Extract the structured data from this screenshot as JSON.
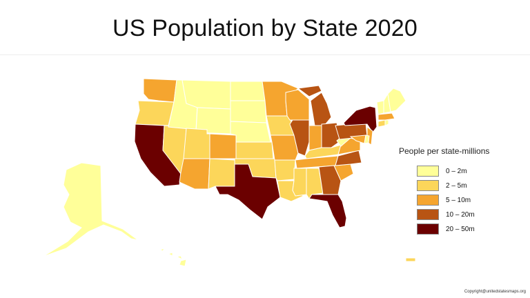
{
  "title": "US Population by State 2020",
  "legend": {
    "title": "People per state-millions",
    "items": [
      {
        "label": "0 – 2m",
        "color": "#ffff99"
      },
      {
        "label": "2 – 5m",
        "color": "#fcd65a"
      },
      {
        "label": "5 – 10m",
        "color": "#f5a52f"
      },
      {
        "label": "10 – 20m",
        "color": "#b85413"
      },
      {
        "label": "20 – 50m",
        "color": "#6b0000"
      }
    ]
  },
  "states": [
    {
      "name": "WA",
      "bin": 2
    },
    {
      "name": "OR",
      "bin": 1
    },
    {
      "name": "CA",
      "bin": 4
    },
    {
      "name": "NV",
      "bin": 1
    },
    {
      "name": "ID",
      "bin": 0
    },
    {
      "name": "MT",
      "bin": 0
    },
    {
      "name": "WY",
      "bin": 0
    },
    {
      "name": "UT",
      "bin": 1
    },
    {
      "name": "AZ",
      "bin": 2
    },
    {
      "name": "NM",
      "bin": 1
    },
    {
      "name": "CO",
      "bin": 2
    },
    {
      "name": "ND",
      "bin": 0
    },
    {
      "name": "SD",
      "bin": 0
    },
    {
      "name": "NE",
      "bin": 0
    },
    {
      "name": "KS",
      "bin": 1
    },
    {
      "name": "OK",
      "bin": 1
    },
    {
      "name": "TX",
      "bin": 4
    },
    {
      "name": "MN",
      "bin": 2
    },
    {
      "name": "IA",
      "bin": 1
    },
    {
      "name": "MO",
      "bin": 2
    },
    {
      "name": "AR",
      "bin": 1
    },
    {
      "name": "LA",
      "bin": 1
    },
    {
      "name": "WI",
      "bin": 2
    },
    {
      "name": "IL",
      "bin": 3
    },
    {
      "name": "MI",
      "bin": 3
    },
    {
      "name": "IN",
      "bin": 2
    },
    {
      "name": "OH",
      "bin": 3
    },
    {
      "name": "KY",
      "bin": 1
    },
    {
      "name": "TN",
      "bin": 2
    },
    {
      "name": "MS",
      "bin": 1
    },
    {
      "name": "AL",
      "bin": 1
    },
    {
      "name": "GA",
      "bin": 3
    },
    {
      "name": "FL",
      "bin": 4
    },
    {
      "name": "SC",
      "bin": 2
    },
    {
      "name": "NC",
      "bin": 3
    },
    {
      "name": "VA",
      "bin": 2
    },
    {
      "name": "WV",
      "bin": 0
    },
    {
      "name": "PA",
      "bin": 3
    },
    {
      "name": "NY",
      "bin": 4
    },
    {
      "name": "NJ",
      "bin": 2
    },
    {
      "name": "MD",
      "bin": 2
    },
    {
      "name": "DE",
      "bin": 0
    },
    {
      "name": "CT",
      "bin": 1
    },
    {
      "name": "RI",
      "bin": 0
    },
    {
      "name": "MA",
      "bin": 2
    },
    {
      "name": "VT",
      "bin": 0
    },
    {
      "name": "NH",
      "bin": 0
    },
    {
      "name": "ME",
      "bin": 0
    },
    {
      "name": "AK",
      "bin": 0
    },
    {
      "name": "HI",
      "bin": 0
    },
    {
      "name": "PR",
      "bin": 1
    }
  ],
  "copyright": "Copyright@unitedstatesmaps.org"
}
